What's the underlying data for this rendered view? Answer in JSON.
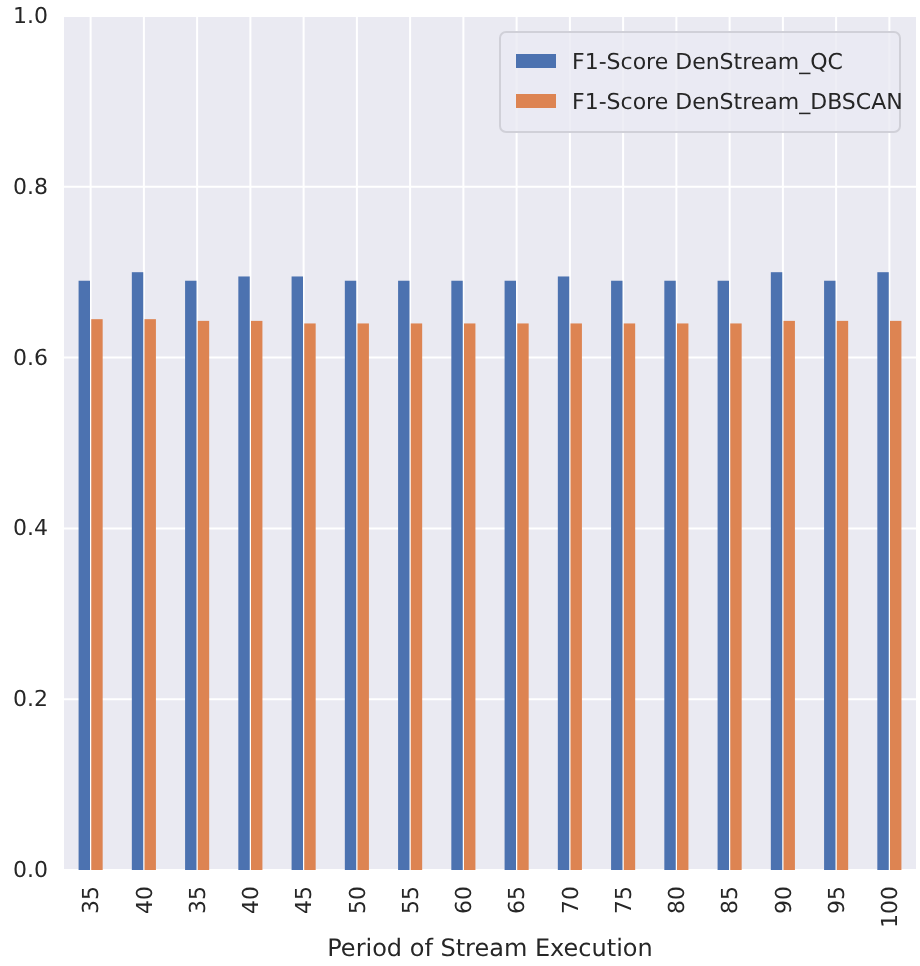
{
  "chart_data": {
    "type": "bar",
    "xlabel": "Period of Stream Execution",
    "categories": [
      "35",
      "40",
      "35",
      "40",
      "45",
      "50",
      "55",
      "60",
      "65",
      "70",
      "75",
      "80",
      "85",
      "90",
      "95",
      "100"
    ],
    "series": [
      {
        "name": "F1-Score DenStream_QC",
        "color": "#4c72b0",
        "values": [
          0.69,
          0.7,
          0.69,
          0.695,
          0.695,
          0.69,
          0.69,
          0.69,
          0.69,
          0.695,
          0.69,
          0.69,
          0.69,
          0.7,
          0.69,
          0.7
        ]
      },
      {
        "name": "F1-Score DenStream_DBSCAN",
        "color": "#dd8452",
        "values": [
          0.645,
          0.645,
          0.643,
          0.643,
          0.64,
          0.64,
          0.64,
          0.64,
          0.64,
          0.64,
          0.64,
          0.64,
          0.64,
          0.643,
          0.643,
          0.643
        ]
      }
    ],
    "ylim": [
      0,
      1
    ],
    "yticks": [
      {
        "value": 0,
        "label": "0.0"
      },
      {
        "value": 0.2,
        "label": "0.2"
      },
      {
        "value": 0.4,
        "label": "0.4"
      },
      {
        "value": 0.6,
        "label": "0.6"
      },
      {
        "value": 0.8,
        "label": "0.8"
      },
      {
        "value": 1,
        "label": "1.0"
      }
    ],
    "grid": true,
    "legend": "top right"
  }
}
